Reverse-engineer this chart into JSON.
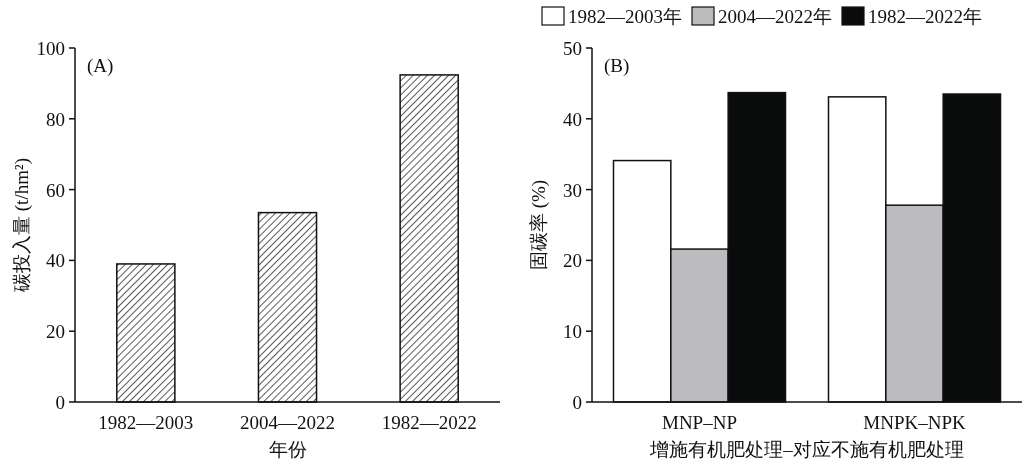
{
  "chart_data": [
    {
      "type": "bar",
      "annotations": [
        "(A)"
      ],
      "xlabel": "年份",
      "ylabel": "碳投入量 (t/hm²)",
      "categories": [
        "1982—2003",
        "2004—2022",
        "1982—2022"
      ],
      "values": [
        39,
        53.5,
        92.4
      ],
      "color": "#ffffff",
      "ylim": [
        0,
        100
      ],
      "yticks": [
        0,
        20,
        40,
        60,
        80,
        100
      ],
      "grid": false,
      "legend": false
    },
    {
      "type": "bar",
      "annotations": [
        "(B)"
      ],
      "xlabel": "增施有机肥处理–对应不施有机肥处理",
      "ylabel": "固碳率 (%)",
      "categories": [
        "MNP–NP",
        "MNPK–NPK"
      ],
      "series": [
        {
          "name": "1982—2003年",
          "color": "#ffffff",
          "values": [
            34.1,
            43.1
          ]
        },
        {
          "name": "2004—2022年",
          "color": "#bcbbc0",
          "values": [
            21.6,
            27.8
          ]
        },
        {
          "name": "1982—2022年",
          "color": "#0a0c0b",
          "values": [
            43.7,
            43.5
          ]
        }
      ],
      "ylim": [
        0,
        50
      ],
      "yticks": [
        0,
        10,
        20,
        30,
        40,
        50
      ],
      "grid": false,
      "legend": "top"
    }
  ]
}
